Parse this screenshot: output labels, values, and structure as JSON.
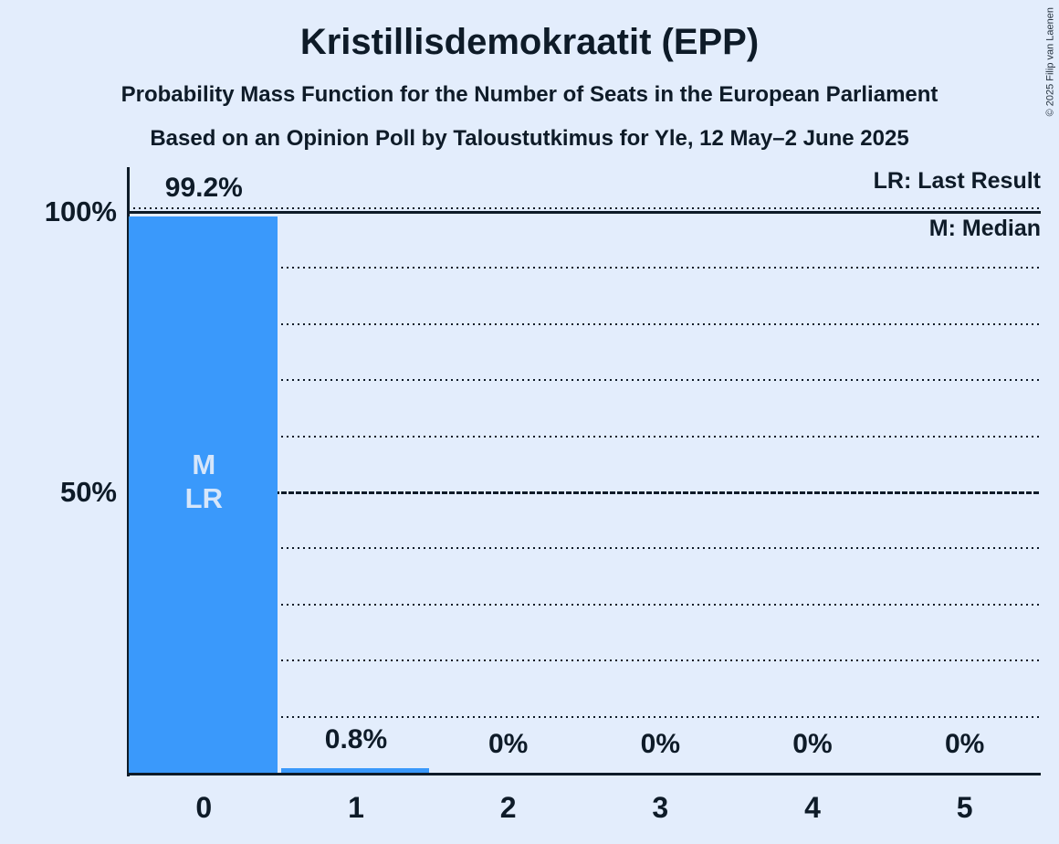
{
  "header": {
    "title": "Kristillisdemokraatit (EPP)",
    "subtitle1": "Probability Mass Function for the Number of Seats in the European Parliament",
    "subtitle2": "Based on an Opinion Poll by Taloustutkimus for Yle, 12 May–2 June 2025"
  },
  "legend": {
    "lr": "LR: Last Result",
    "m": "M: Median"
  },
  "copyright": "© 2025 Filip van Laenen",
  "colors": {
    "background": "#E3EDFC",
    "bar": "#3A99FB",
    "ink": "#0E1B28",
    "bar-label": "#D6E6FA"
  },
  "chart_data": {
    "type": "bar",
    "title": "Kristillisdemokraatit (EPP)",
    "categories": [
      "0",
      "1",
      "2",
      "3",
      "4",
      "5"
    ],
    "values": [
      99.2,
      0.8,
      0,
      0,
      0,
      0
    ],
    "value_labels": [
      "99.2%",
      "0.8%",
      "0%",
      "0%",
      "0%",
      "0%"
    ],
    "ylim": [
      0,
      100
    ],
    "yticks": [
      {
        "value": 100,
        "label": "100%"
      },
      {
        "value": 50,
        "label": "50%"
      }
    ],
    "gridlines": {
      "dotted_values": [
        10,
        20,
        30,
        40,
        60,
        70,
        80,
        90
      ],
      "dashed_value": 50,
      "solid_value": 100,
      "dotted_above_solid_value": 100.7
    },
    "bar_annotations": [
      {
        "category_index": 0,
        "lines": [
          "M",
          "LR"
        ]
      }
    ],
    "legend_position": "top-right",
    "grid": "horizontal-dotted"
  }
}
